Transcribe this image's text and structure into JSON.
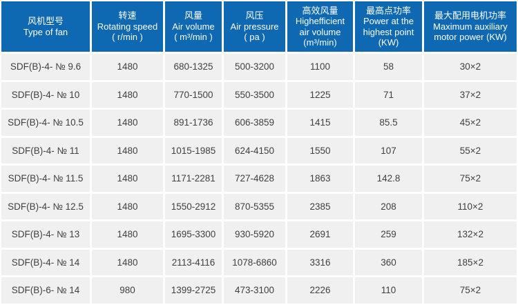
{
  "colors": {
    "header_bg": "#0e69b2",
    "header_text": "#ffffff",
    "row_bg": "#f0f0f0",
    "cell_text": "#3f3f3f",
    "gutter": "#ffffff"
  },
  "table": {
    "columns": [
      {
        "id": "model",
        "lines": [
          "风机型号",
          "Type of fan"
        ]
      },
      {
        "id": "rotating-speed",
        "lines": [
          "转速",
          "Rotating speed",
          "( r/min )"
        ]
      },
      {
        "id": "air-volume",
        "lines": [
          "风量",
          "Air volume",
          "( m³/min )"
        ]
      },
      {
        "id": "air-pressure",
        "lines": [
          "风压",
          "Air pressure",
          "( pa )"
        ]
      },
      {
        "id": "he-air-volume",
        "lines": [
          "高效风量",
          "Highefficient",
          "air volume",
          "(m³/min)"
        ]
      },
      {
        "id": "highest-power",
        "lines": [
          "最高点功率",
          "Power at the",
          "highest point",
          "(KW)"
        ]
      },
      {
        "id": "motor-power",
        "lines": [
          "最大配用电机功率",
          "Maximum auxiliary",
          "motor power (KW)"
        ]
      }
    ],
    "rows": [
      [
        "SDF(B)-4- № 9.6",
        "1480",
        "680-1325",
        "500-3200",
        "1100",
        "58",
        "30×2"
      ],
      [
        "SDF(B)-4- № 10",
        "1480",
        "770-1500",
        "550-3500",
        "1225",
        "71",
        "37×2"
      ],
      [
        "SDF(B)-4- № 10.5",
        "1480",
        "891-1736",
        "606-3859",
        "1415",
        "85.5",
        "45×2"
      ],
      [
        "SDF(B)-4- № 11",
        "1480",
        "1015-1985",
        "624-4150",
        "1550",
        "107",
        "55×2"
      ],
      [
        "SDF(B)-4- № 11.5",
        "1480",
        "1171-2281",
        "727-4628",
        "1863",
        "142.8",
        "75×2"
      ],
      [
        "SDF(B)-4- № 12.5",
        "1480",
        "1550-2912",
        "870-5355",
        "2385",
        "208",
        "110×2"
      ],
      [
        "SDF(B)-4- № 13",
        "1480",
        "1695-3300",
        "930-5920",
        "2691",
        "259",
        "132×2"
      ],
      [
        "SDF(B)-4- № 14",
        "1480",
        "2113-4116",
        "1078-6860",
        "3316",
        "360",
        "185×2"
      ],
      [
        "SDF(B)-6- № 14",
        "980",
        "1399-2725",
        "473-3100",
        "2226",
        "110",
        "75×2"
      ]
    ]
  }
}
